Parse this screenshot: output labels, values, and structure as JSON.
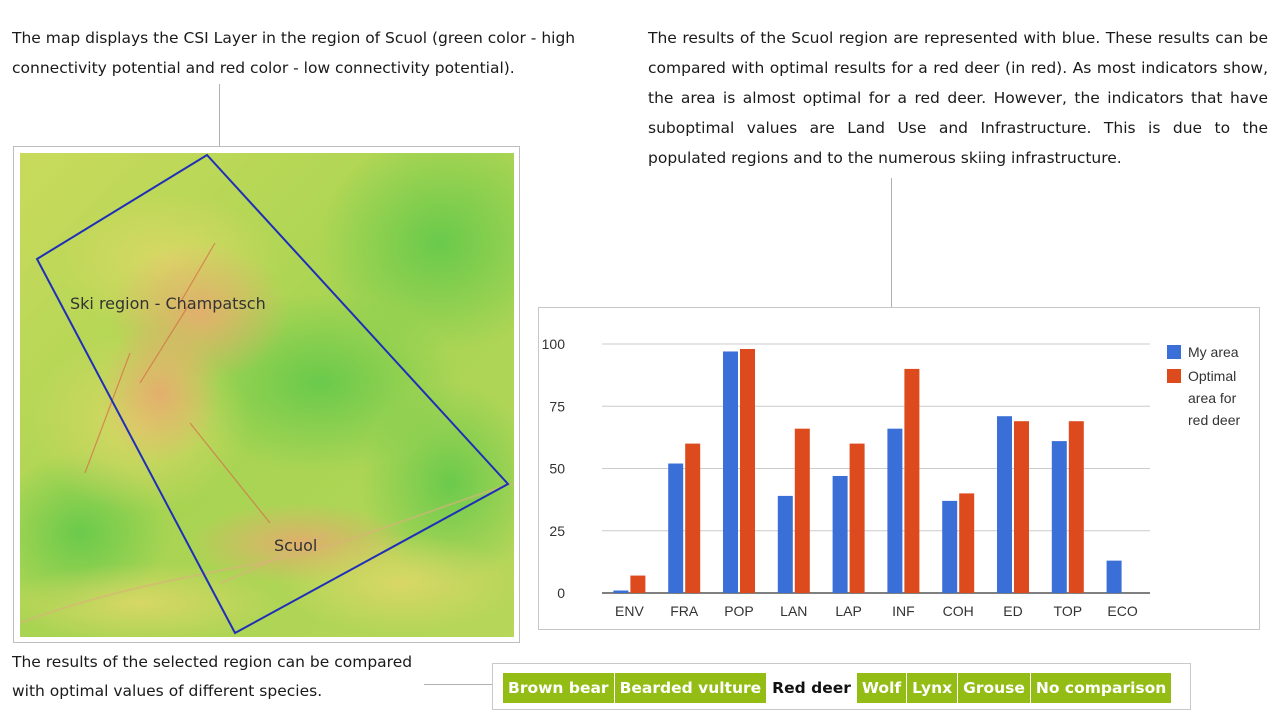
{
  "captions": {
    "map": "The map displays the CSI Layer in the region of Scuol (green color - high connectivity potential and red color - low connectivity potential).",
    "results": "The results of the Scuol region are represented with blue. These results can be compared with optimal results for a red deer (in red). As most indicators show, the area is almost optimal for a red deer. However, the indicators that have suboptimal values are Land Use and Infrastructure. This is due to the populated regions and to the numerous skiing infrastructure.",
    "compare": "The results of the selected region can be compared with optimal values of different species."
  },
  "map": {
    "labels": {
      "ski_region": "Ski region - Champatsch",
      "scuol": "Scuol"
    },
    "colors": {
      "selection": "#1f2fb8",
      "high": "#7fd64a",
      "low": "#e2b86a"
    }
  },
  "chart_data": {
    "type": "bar",
    "categories": [
      "ENV",
      "FRA",
      "POP",
      "LAN",
      "LAP",
      "INF",
      "COH",
      "ED",
      "TOP",
      "ECO"
    ],
    "series": [
      {
        "name": "My area",
        "color": "#3b6fd8",
        "values": [
          1,
          52,
          97,
          39,
          47,
          66,
          37,
          71,
          61,
          13
        ]
      },
      {
        "name": "Optimal area for red deer",
        "color": "#dd4a1e",
        "values": [
          7,
          60,
          98,
          66,
          60,
          90,
          40,
          69,
          69,
          0
        ]
      }
    ],
    "legend_lines": [
      [
        "My area"
      ],
      [
        "Optimal",
        "area for",
        "red deer"
      ]
    ],
    "yticks": [
      0,
      25,
      50,
      75,
      100
    ],
    "ylim": [
      0,
      100
    ],
    "grid": true,
    "legend_position": "right",
    "title": "",
    "xlabel": "",
    "ylabel": ""
  },
  "species_selector": {
    "options": [
      "Brown bear",
      "Bearded vulture",
      "Red deer",
      "Wolf",
      "Lynx",
      "Grouse",
      "No comparison"
    ],
    "selected": "Red deer",
    "colors": {
      "tab_bg": "#93bd14",
      "tab_text": "#ffffff",
      "selected_bg": "#ffffff",
      "selected_text": "#111111"
    }
  }
}
